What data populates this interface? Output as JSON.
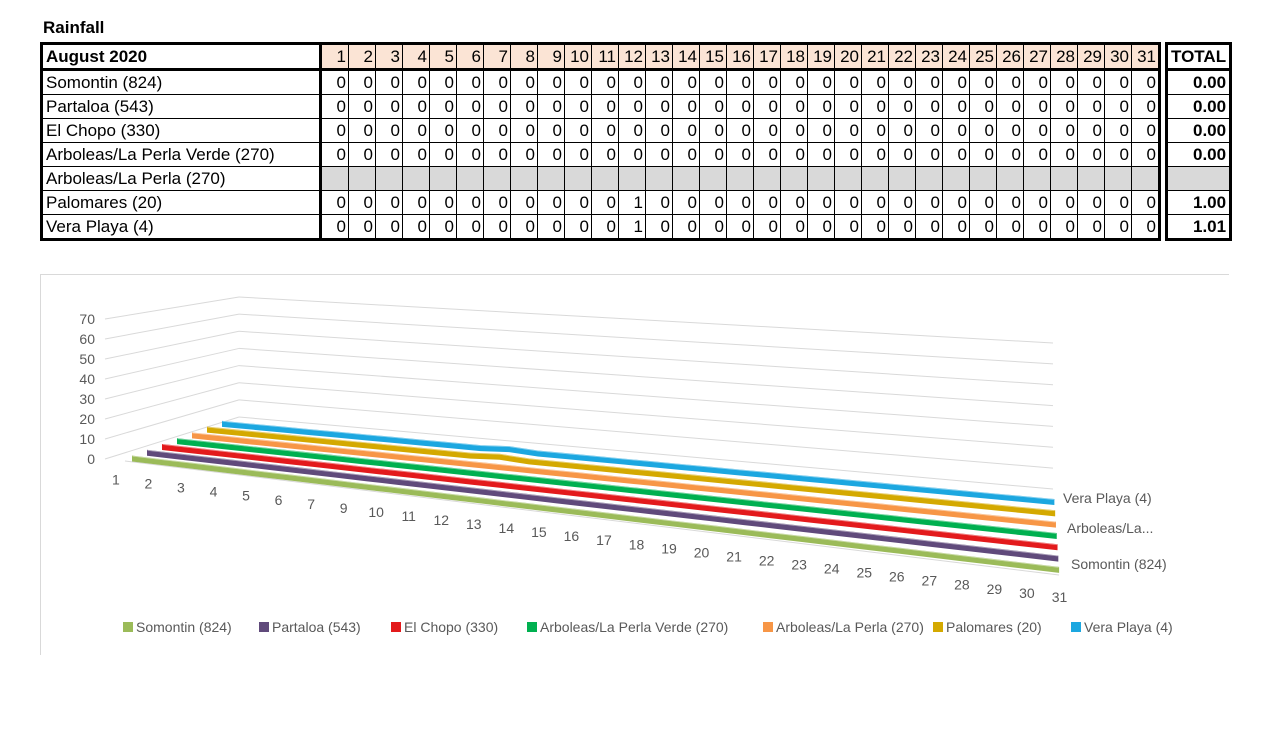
{
  "title": "Rainfall",
  "table": {
    "month_label": "August 2020",
    "total_label": "TOTAL",
    "days": [
      "1",
      "2",
      "3",
      "4",
      "5",
      "6",
      "7",
      "8",
      "9",
      "10",
      "11",
      "12",
      "13",
      "14",
      "15",
      "16",
      "17",
      "18",
      "19",
      "20",
      "21",
      "22",
      "23",
      "24",
      "25",
      "26",
      "27",
      "28",
      "29",
      "30",
      "31"
    ],
    "rows": [
      {
        "station": "Somontin (824)",
        "values": [
          0,
          0,
          0,
          0,
          0,
          0,
          0,
          0,
          0,
          0,
          0,
          0,
          0,
          0,
          0,
          0,
          0,
          0,
          0,
          0,
          0,
          0,
          0,
          0,
          0,
          0,
          0,
          0,
          0,
          0,
          0
        ],
        "total": "0.00"
      },
      {
        "station": "Partaloa (543)",
        "values": [
          0,
          0,
          0,
          0,
          0,
          0,
          0,
          0,
          0,
          0,
          0,
          0,
          0,
          0,
          0,
          0,
          0,
          0,
          0,
          0,
          0,
          0,
          0,
          0,
          0,
          0,
          0,
          0,
          0,
          0,
          0
        ],
        "total": "0.00"
      },
      {
        "station": "El Chopo (330)",
        "values": [
          0,
          0,
          0,
          0,
          0,
          0,
          0,
          0,
          0,
          0,
          0,
          0,
          0,
          0,
          0,
          0,
          0,
          0,
          0,
          0,
          0,
          0,
          0,
          0,
          0,
          0,
          0,
          0,
          0,
          0,
          0
        ],
        "total": "0.00"
      },
      {
        "station": "Arboleas/La Perla Verde (270)",
        "values": [
          0,
          0,
          0,
          0,
          0,
          0,
          0,
          0,
          0,
          0,
          0,
          0,
          0,
          0,
          0,
          0,
          0,
          0,
          0,
          0,
          0,
          0,
          0,
          0,
          0,
          0,
          0,
          0,
          0,
          0,
          0
        ],
        "total": "0.00"
      },
      {
        "station": "Arboleas/La Perla (270)",
        "values": null,
        "total": ""
      },
      {
        "station": "Palomares (20)",
        "values": [
          0,
          0,
          0,
          0,
          0,
          0,
          0,
          0,
          0,
          0,
          0,
          1,
          0,
          0,
          0,
          0,
          0,
          0,
          0,
          0,
          0,
          0,
          0,
          0,
          0,
          0,
          0,
          0,
          0,
          0,
          0
        ],
        "total": "1.00"
      },
      {
        "station": "Vera Playa (4)",
        "values": [
          0,
          0,
          0,
          0,
          0,
          0,
          0,
          0,
          0,
          0,
          0,
          1,
          0,
          0,
          0,
          0,
          0,
          0,
          0,
          0,
          0,
          0,
          0,
          0,
          0,
          0,
          0,
          0,
          0,
          0,
          0
        ],
        "total": "1.01"
      }
    ]
  },
  "chart_data": {
    "type": "line",
    "title": "",
    "x": [
      "1",
      "2",
      "3",
      "4",
      "5",
      "6",
      "7",
      "9",
      "10",
      "11",
      "12",
      "13",
      "14",
      "15",
      "16",
      "17",
      "18",
      "19",
      "20",
      "21",
      "22",
      "23",
      "24",
      "25",
      "26",
      "27",
      "28",
      "29",
      "30",
      "31"
    ],
    "y_ticks": [
      0,
      10,
      20,
      30,
      40,
      50,
      60,
      70
    ],
    "ylim": [
      0,
      70
    ],
    "grid": true,
    "legend_position": "bottom",
    "depth_axis_labels": [
      "Vera Playa (4)",
      "Arboleas/La...",
      "Somontin (824)"
    ],
    "series": [
      {
        "name": "Somontin (824)",
        "color": "#9bbb59",
        "values": [
          0,
          0,
          0,
          0,
          0,
          0,
          0,
          0,
          0,
          0,
          0,
          0,
          0,
          0,
          0,
          0,
          0,
          0,
          0,
          0,
          0,
          0,
          0,
          0,
          0,
          0,
          0,
          0,
          0,
          0
        ]
      },
      {
        "name": "Partaloa (543)",
        "color": "#604a7b",
        "values": [
          0,
          0,
          0,
          0,
          0,
          0,
          0,
          0,
          0,
          0,
          0,
          0,
          0,
          0,
          0,
          0,
          0,
          0,
          0,
          0,
          0,
          0,
          0,
          0,
          0,
          0,
          0,
          0,
          0,
          0
        ]
      },
      {
        "name": "El Chopo (330)",
        "color": "#e31a1c",
        "values": [
          0,
          0,
          0,
          0,
          0,
          0,
          0,
          0,
          0,
          0,
          0,
          0,
          0,
          0,
          0,
          0,
          0,
          0,
          0,
          0,
          0,
          0,
          0,
          0,
          0,
          0,
          0,
          0,
          0,
          0
        ]
      },
      {
        "name": "Arboleas/La Perla Verde (270)",
        "color": "#00b050",
        "values": [
          0,
          0,
          0,
          0,
          0,
          0,
          0,
          0,
          0,
          0,
          0,
          0,
          0,
          0,
          0,
          0,
          0,
          0,
          0,
          0,
          0,
          0,
          0,
          0,
          0,
          0,
          0,
          0,
          0,
          0
        ]
      },
      {
        "name": "Arboleas/La Perla (270)",
        "color": "#f79646",
        "values": [
          0,
          0,
          0,
          0,
          0,
          0,
          0,
          0,
          0,
          0,
          0,
          0,
          0,
          0,
          0,
          0,
          0,
          0,
          0,
          0,
          0,
          0,
          0,
          0,
          0,
          0,
          0,
          0,
          0,
          0
        ]
      },
      {
        "name": "Palomares (20)",
        "color": "#d4a900",
        "values": [
          0,
          0,
          0,
          0,
          0,
          0,
          0,
          0,
          0,
          0,
          1,
          0,
          0,
          0,
          0,
          0,
          0,
          0,
          0,
          0,
          0,
          0,
          0,
          0,
          0,
          0,
          0,
          0,
          0,
          0
        ]
      },
      {
        "name": "Vera Playa (4)",
        "color": "#1ca7e0",
        "values": [
          0,
          0,
          0,
          0,
          0,
          0,
          0,
          0,
          0,
          0,
          1,
          0,
          0,
          0,
          0,
          0,
          0,
          0,
          0,
          0,
          0,
          0,
          0,
          0,
          0,
          0,
          0,
          0,
          0,
          0
        ]
      }
    ]
  }
}
